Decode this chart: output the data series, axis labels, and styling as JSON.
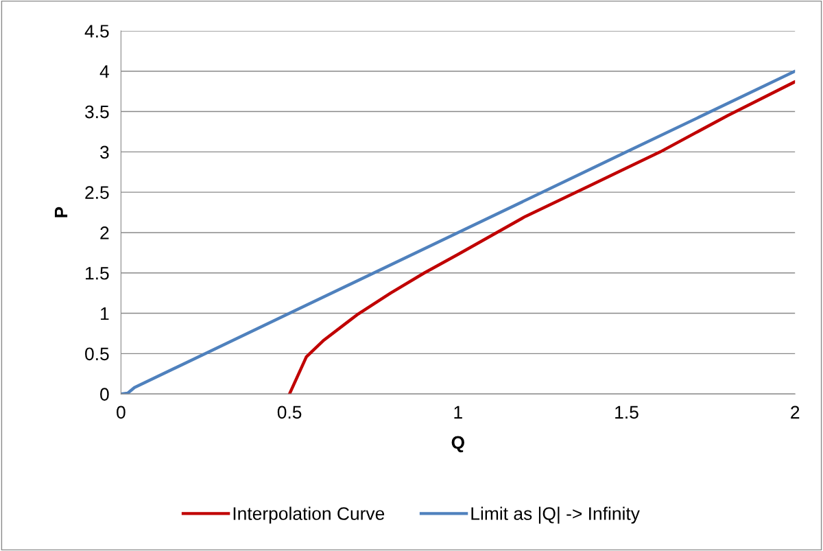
{
  "chart_data": {
    "type": "line",
    "xlabel": "Q",
    "ylabel": "P",
    "xlim": [
      0,
      2
    ],
    "xticks": [
      0,
      0.5,
      1,
      1.5,
      2
    ],
    "ylim": [
      0,
      4.5
    ],
    "yticks": [
      0,
      0.5,
      1,
      1.5,
      2,
      2.5,
      3,
      3.5,
      4,
      4.5
    ],
    "grid": "y",
    "legend": "bottom",
    "marker": "none",
    "line_style": "solid",
    "series": [
      {
        "name": "Interpolation Curve",
        "color": "#c00000",
        "x": [
          0.5,
          0.55,
          0.6,
          0.7,
          0.8,
          0.9,
          1.0,
          1.2,
          1.4,
          1.6,
          1.8,
          2.0
        ],
        "values": [
          0,
          0.46,
          0.66,
          0.98,
          1.25,
          1.5,
          1.73,
          2.2,
          2.6,
          3.0,
          3.45,
          3.87
        ]
      },
      {
        "name": "Limit as |Q| -> Infinity",
        "color": "#4f81bd",
        "x": [
          0,
          0.02,
          0.04,
          0.5,
          1.0,
          1.5,
          2.0
        ],
        "values": [
          0,
          0.01,
          0.08,
          1.0,
          2.0,
          3.0,
          4.0
        ]
      }
    ]
  }
}
